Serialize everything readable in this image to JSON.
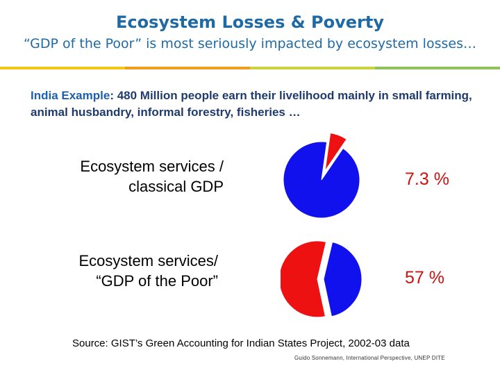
{
  "header": {
    "title": "Ecosystem Losses & Poverty",
    "subtitle": "“GDP of the Poor” is most seriously impacted by ecosystem losses…"
  },
  "stripe_colors": [
    "#f2c617",
    "#ef9d1f",
    "#c9d43c",
    "#8fc25a"
  ],
  "intro": {
    "highlight": "India Example",
    "text": ": 480 Million people earn their livelihood mainly in small farming, animal husbandry, informal forestry, fisheries …"
  },
  "rows": [
    {
      "label_line1": "Ecosystem services /",
      "label_line2": "classical GDP",
      "value_text": "7.3 %"
    },
    {
      "label_line1": "Ecosystem services/",
      "label_line2": "“GDP of the Poor”",
      "value_text": "57  %"
    }
  ],
  "chart_data": [
    {
      "type": "pie",
      "slices": [
        {
          "value": 7.3,
          "color": "#ee1111",
          "exploded": true
        },
        {
          "value": 92.7,
          "color": "#1111ee",
          "exploded": false
        }
      ]
    },
    {
      "type": "pie",
      "slices": [
        {
          "value": 57,
          "color": "#ee1111",
          "exploded": true
        },
        {
          "value": 43,
          "color": "#1111ee",
          "exploded": false
        }
      ]
    }
  ],
  "footer": {
    "source": "Source:  GIST’s Green Accounting for Indian States Project, 2002-03 data",
    "credit": "Guido Sonnemann, International Perspective, UNEP DITE"
  }
}
